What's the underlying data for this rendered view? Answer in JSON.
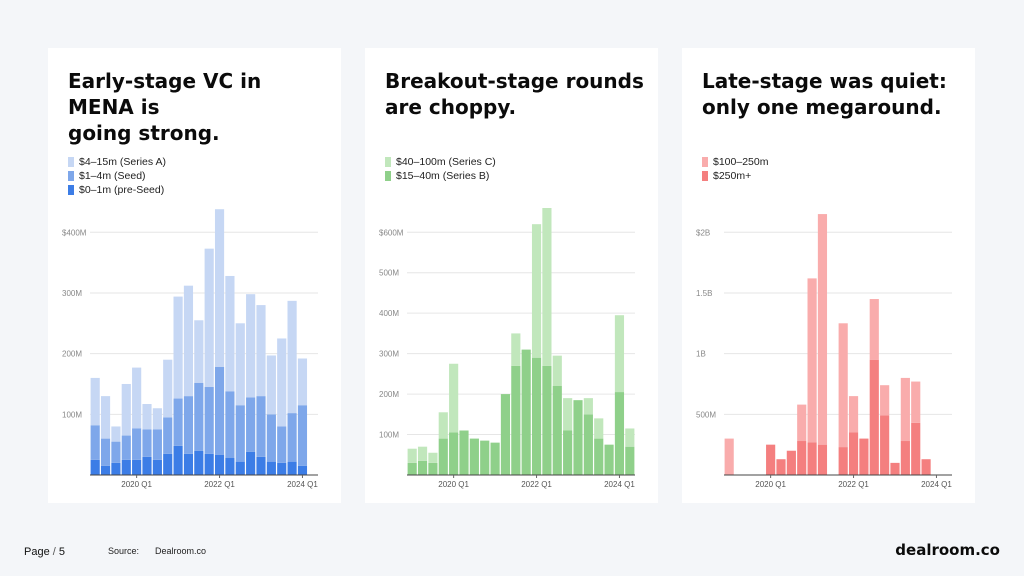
{
  "footer": {
    "page_label": "Page",
    "page_sep": "/",
    "page_number": "5",
    "source_label": "Source:",
    "source_name": "Dealroom.co",
    "brand": "dealroom.co"
  },
  "chart_data": [
    {
      "type": "bar",
      "stacked": true,
      "title": "Early-stage VC in MENA is\ngoing strong.",
      "legend_position": "top-left",
      "grid": true,
      "categories": [
        "2019 Q1",
        "2019 Q2",
        "2019 Q3",
        "2019 Q4",
        "2020 Q1",
        "2020 Q2",
        "2020 Q3",
        "2020 Q4",
        "2021 Q1",
        "2021 Q2",
        "2021 Q3",
        "2021 Q4",
        "2022 Q1",
        "2022 Q2",
        "2022 Q3",
        "2022 Q4",
        "2023 Q1",
        "2023 Q2",
        "2023 Q3",
        "2023 Q4",
        "2024 Q1",
        "2024 Q2"
      ],
      "x_tick_labels": [
        {
          "label": "2020 Q1",
          "category": "2020 Q1"
        },
        {
          "label": "2022 Q1",
          "category": "2022 Q1"
        },
        {
          "label": "2024 Q1",
          "category": "2024 Q1"
        }
      ],
      "ylim": [
        0,
        440
      ],
      "y_ticks": [
        100,
        200,
        300,
        400
      ],
      "y_tick_labels": [
        "100M",
        "200M",
        "300M",
        "$400M"
      ],
      "series": [
        {
          "name": "$0–1m (pre-Seed)",
          "color": "#3c7de6",
          "values": [
            25,
            15,
            20,
            25,
            25,
            30,
            25,
            35,
            48,
            35,
            40,
            35,
            33,
            28,
            22,
            38,
            30,
            22,
            20,
            22,
            15,
            0
          ]
        },
        {
          "name": "$1–4m (Seed)",
          "color": "#7ea7ea",
          "values": [
            57,
            45,
            35,
            40,
            52,
            45,
            50,
            60,
            78,
            95,
            112,
            110,
            145,
            110,
            93,
            90,
            100,
            78,
            60,
            80,
            100,
            0
          ]
        },
        {
          "name": "$4–15m (Series A)",
          "color": "#c6d7f4",
          "values": [
            78,
            70,
            25,
            85,
            100,
            42,
            35,
            95,
            168,
            182,
            103,
            228,
            260,
            190,
            135,
            170,
            150,
            97,
            145,
            185,
            77,
            0
          ]
        }
      ]
    },
    {
      "type": "bar",
      "stacked": true,
      "title": "Breakout-stage rounds\nare choppy.",
      "legend_position": "top-left",
      "grid": true,
      "categories": [
        "2019 Q1",
        "2019 Q2",
        "2019 Q3",
        "2019 Q4",
        "2020 Q1",
        "2020 Q2",
        "2020 Q3",
        "2020 Q4",
        "2021 Q1",
        "2021 Q2",
        "2021 Q3",
        "2021 Q4",
        "2022 Q1",
        "2022 Q2",
        "2022 Q3",
        "2022 Q4",
        "2023 Q1",
        "2023 Q2",
        "2023 Q3",
        "2023 Q4",
        "2024 Q1",
        "2024 Q2"
      ],
      "x_tick_labels": [
        {
          "label": "2020 Q1",
          "category": "2020 Q1"
        },
        {
          "label": "2022 Q1",
          "category": "2022 Q1"
        },
        {
          "label": "2024 Q1",
          "category": "2024 Q1"
        }
      ],
      "ylim": [
        0,
        660
      ],
      "y_ticks": [
        100,
        200,
        300,
        400,
        500,
        600
      ],
      "y_tick_labels": [
        "100M",
        "200M",
        "300M",
        "400M",
        "500M",
        "$600M"
      ],
      "series": [
        {
          "name": "$15–40m (Series B)",
          "color": "#8fd08a",
          "values": [
            30,
            35,
            30,
            90,
            105,
            110,
            90,
            85,
            80,
            200,
            270,
            310,
            290,
            270,
            220,
            110,
            185,
            150,
            90,
            75,
            205,
            70
          ]
        },
        {
          "name": "$40–100m (Series C)",
          "color": "#c1e7bc",
          "values": [
            35,
            35,
            25,
            65,
            170,
            0,
            0,
            0,
            0,
            0,
            80,
            0,
            330,
            390,
            75,
            80,
            0,
            40,
            50,
            0,
            190,
            45
          ]
        }
      ]
    },
    {
      "type": "bar",
      "stacked": true,
      "title": "Late-stage was quiet:\nonly one megaround.",
      "legend_position": "top-left",
      "grid": true,
      "categories": [
        "2019 Q1",
        "2019 Q2",
        "2019 Q3",
        "2019 Q4",
        "2020 Q1",
        "2020 Q2",
        "2020 Q3",
        "2020 Q4",
        "2021 Q1",
        "2021 Q2",
        "2021 Q3",
        "2021 Q4",
        "2022 Q1",
        "2022 Q2",
        "2022 Q3",
        "2022 Q4",
        "2023 Q1",
        "2023 Q2",
        "2023 Q3",
        "2023 Q4",
        "2024 Q1",
        "2024 Q2"
      ],
      "x_tick_labels": [
        {
          "label": "2020 Q1",
          "category": "2020 Q1"
        },
        {
          "label": "2022 Q1",
          "category": "2022 Q1"
        },
        {
          "label": "2024 Q1",
          "category": "2024 Q1"
        }
      ],
      "ylim": [
        0,
        2200
      ],
      "y_ticks": [
        500,
        1000,
        1500,
        2000
      ],
      "y_tick_labels": [
        "500M",
        "1B",
        "1.5B",
        "$2B"
      ],
      "series": [
        {
          "name": "$250m+",
          "color": "#f47f7f",
          "values": [
            0,
            0,
            0,
            0,
            250,
            130,
            200,
            280,
            270,
            250,
            0,
            230,
            350,
            300,
            950,
            490,
            100,
            280,
            430,
            130,
            0,
            0
          ]
        },
        {
          "name": "$100–250m",
          "color": "#f9acac",
          "values": [
            300,
            0,
            0,
            0,
            0,
            0,
            0,
            300,
            1350,
            1900,
            0,
            1020,
            300,
            0,
            500,
            250,
            0,
            520,
            340,
            0,
            0,
            0
          ]
        }
      ]
    }
  ]
}
